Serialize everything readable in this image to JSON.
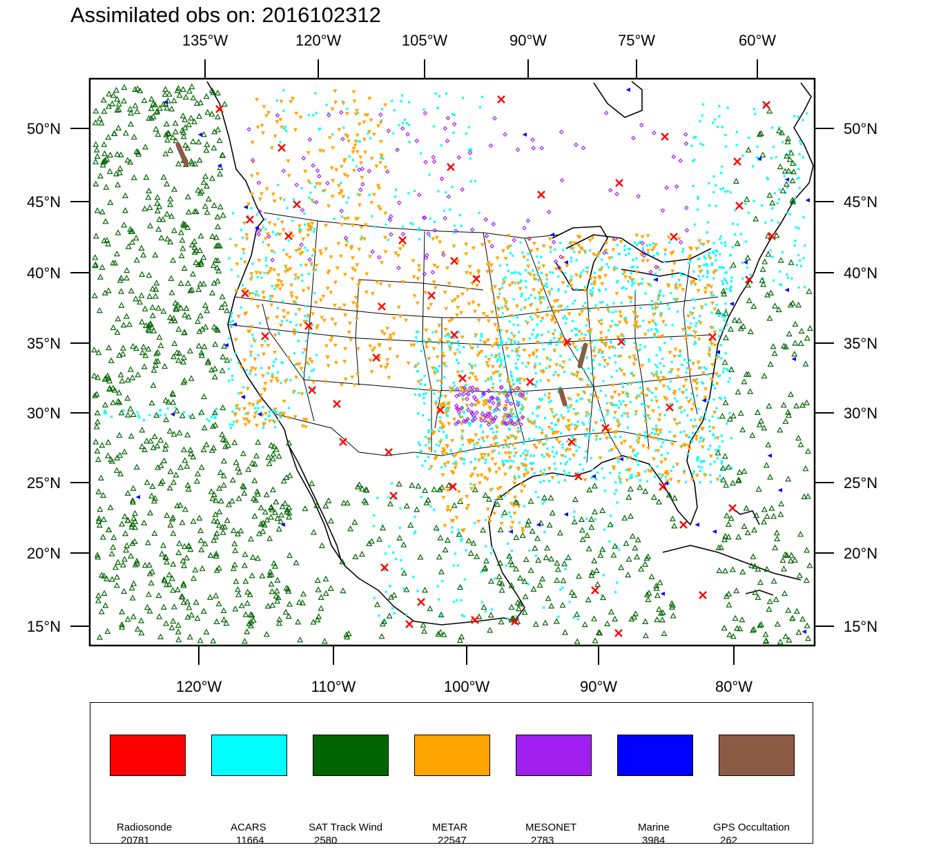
{
  "title": "Assimilated obs on: 2016102312",
  "map": {
    "region": "Continental United States",
    "top_axis_labels": [
      "135°W",
      "120°W",
      "105°W",
      "90°W",
      "75°W",
      "60°W"
    ],
    "bottom_axis_labels": [
      "120°W",
      "110°W",
      "100°W",
      "90°W",
      "80°W"
    ],
    "left_axis_labels": [
      "50°N",
      "45°N",
      "40°N",
      "35°N",
      "30°N",
      "25°N",
      "20°N",
      "15°N"
    ],
    "right_axis_labels": [
      "50°N",
      "45°N",
      "40°N",
      "35°N",
      "30°N",
      "25°N",
      "20°N",
      "15°N"
    ]
  },
  "legend": {
    "items": [
      {
        "name": "Radiosonde",
        "count": "20781",
        "color": "#ff0000",
        "marker": "x-mark"
      },
      {
        "name": "ACARS",
        "count": "11664",
        "color": "#00ffff",
        "marker": "square-dot"
      },
      {
        "name": "SAT Track Wind",
        "count": "2580",
        "color": "#006400",
        "marker": "triangle-open"
      },
      {
        "name": "METAR",
        "count": "22547",
        "color": "#ffa500",
        "marker": "triangle-down"
      },
      {
        "name": "MESONET",
        "count": "2783",
        "color": "#a020f0",
        "marker": "diamond-open"
      },
      {
        "name": "Marine",
        "count": "3984",
        "color": "#0000ff",
        "marker": "triangle-left"
      },
      {
        "name": "GPS Occultation",
        "count": "262",
        "color": "#8b5a44",
        "marker": "streak"
      }
    ]
  }
}
